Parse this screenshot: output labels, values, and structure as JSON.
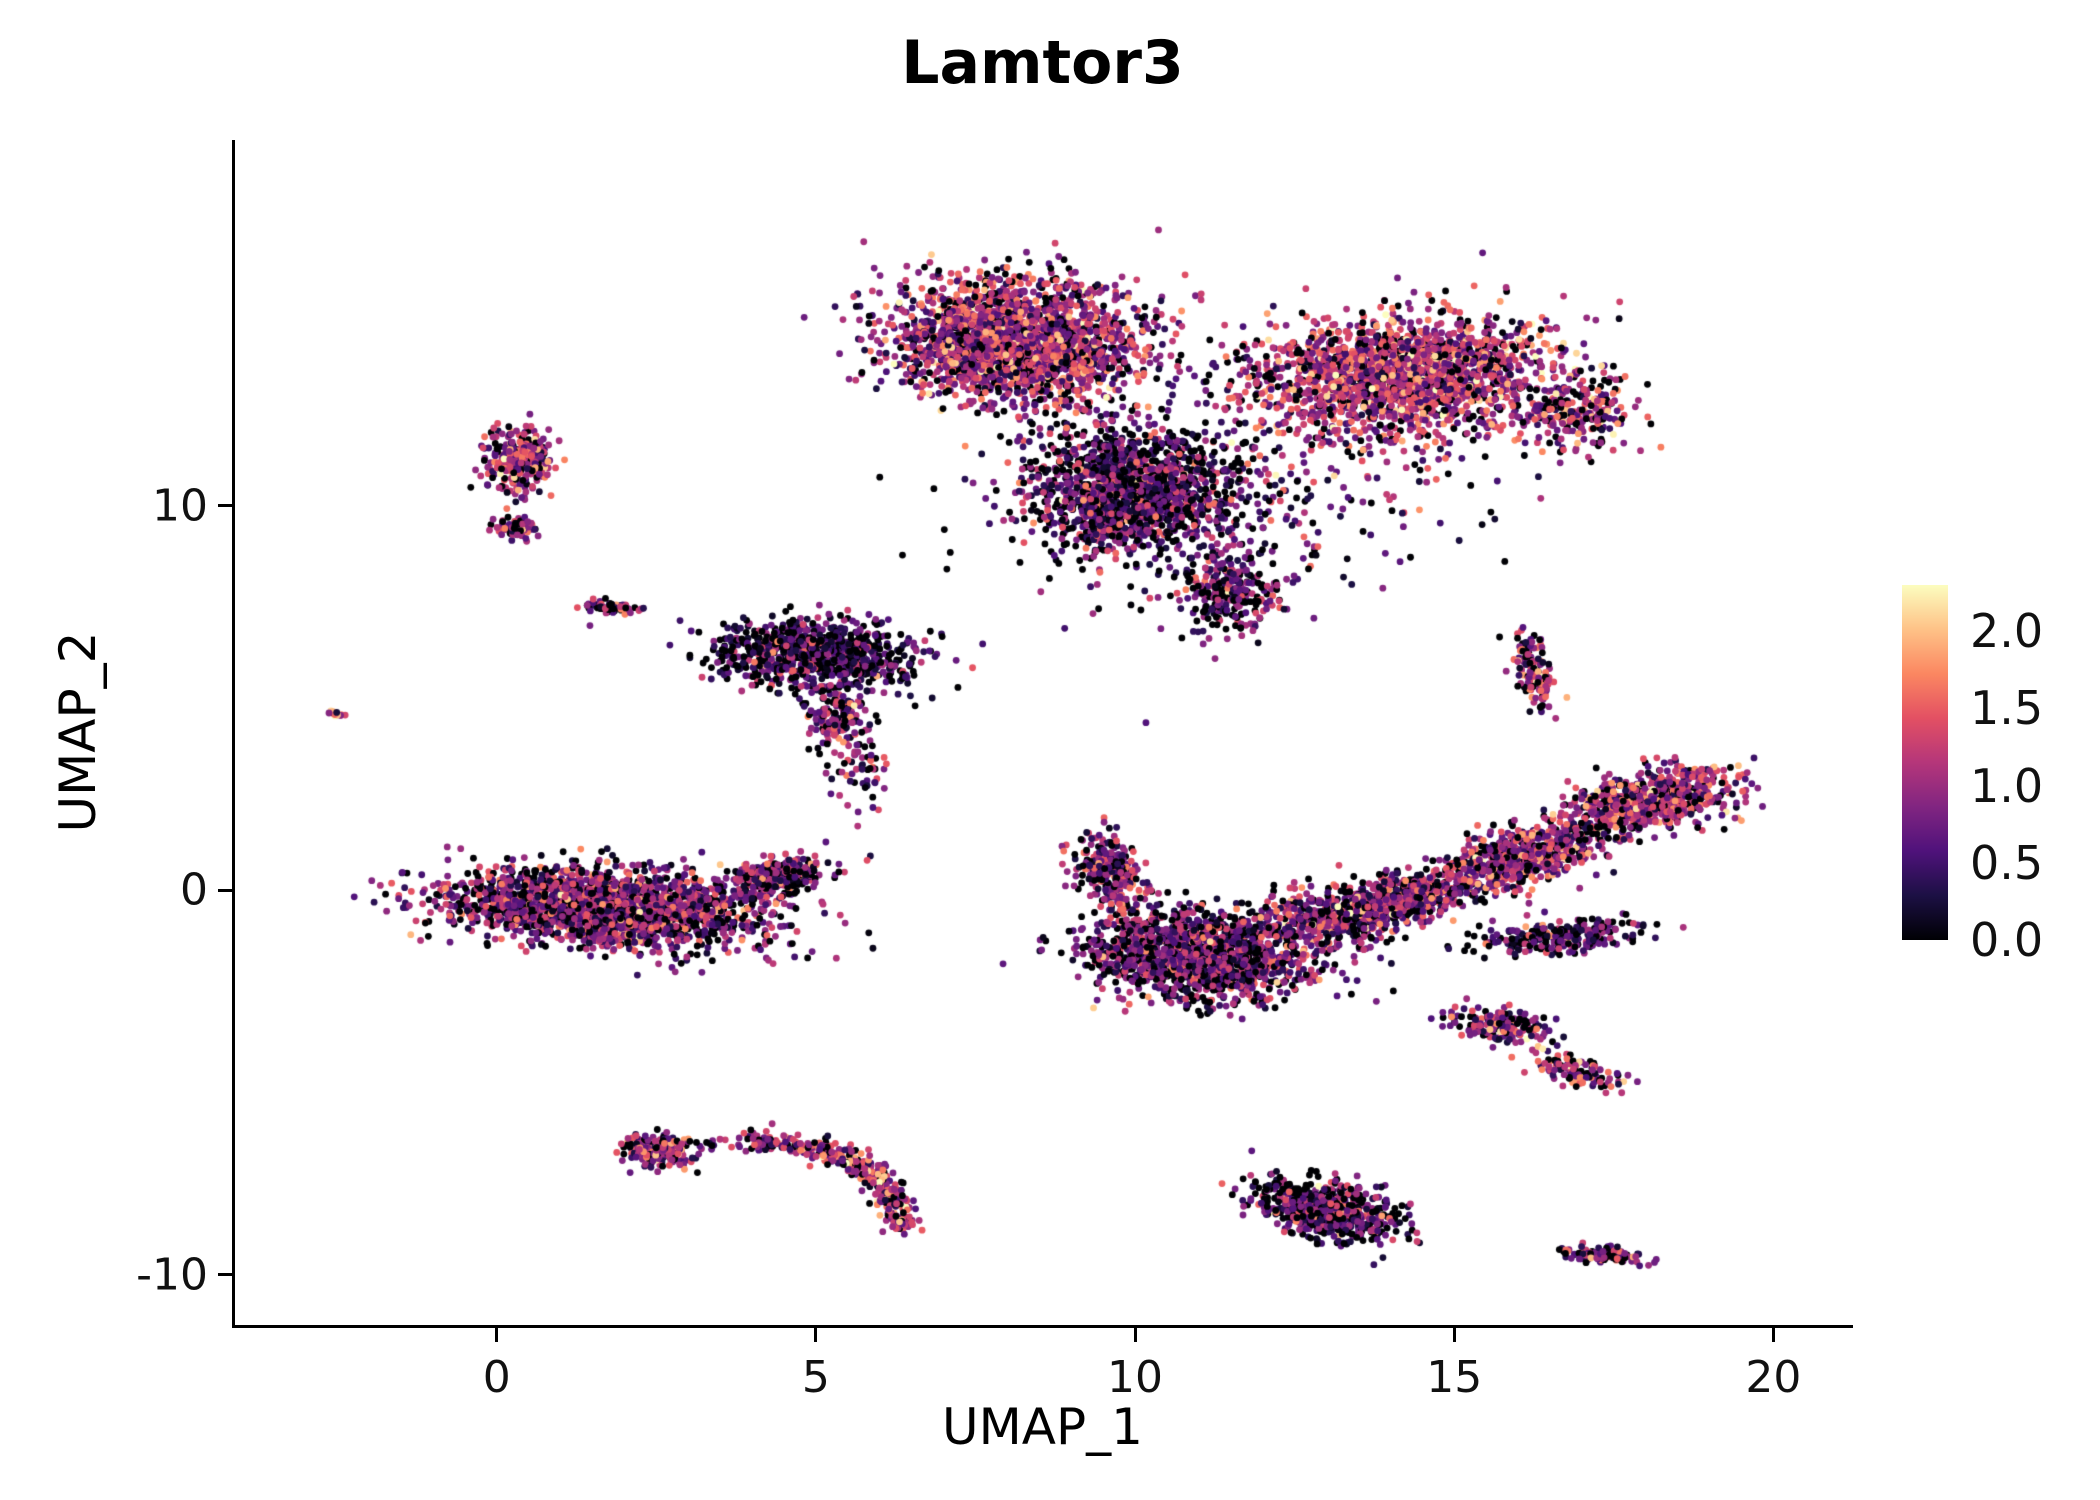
{
  "title": "Lamtor3",
  "chart_data": {
    "type": "scatter",
    "title": "Lamtor3",
    "xlabel": "UMAP_1",
    "ylabel": "UMAP_2",
    "xlim": [
      -4.1,
      21.2
    ],
    "ylim": [
      -11.3,
      19.5
    ],
    "x_ticks": [
      0,
      5,
      10,
      15,
      20
    ],
    "y_ticks": [
      -10,
      0,
      10
    ],
    "grid": false,
    "background": "#ffffff",
    "axis_color": "#000000",
    "point_radius_px": 3.4,
    "legend": {
      "position": "right",
      "vmin": 0.0,
      "vmax": 2.3,
      "ticks": [
        2.0,
        1.5,
        1.0,
        0.5,
        0.0
      ],
      "tick_labels": [
        "2.0",
        "1.5",
        "1.0",
        "0.5",
        "0.0"
      ]
    },
    "colormap": {
      "name": "magma",
      "stops": [
        {
          "t": 0.0,
          "color": "#000004"
        },
        {
          "t": 0.125,
          "color": "#1c1044"
        },
        {
          "t": 0.25,
          "color": "#4f127b"
        },
        {
          "t": 0.375,
          "color": "#812581"
        },
        {
          "t": 0.5,
          "color": "#b5367a"
        },
        {
          "t": 0.625,
          "color": "#e35063"
        },
        {
          "t": 0.75,
          "color": "#fb8761"
        },
        {
          "t": 0.875,
          "color": "#fec287"
        },
        {
          "t": 1.0,
          "color": "#fcfdbf"
        }
      ]
    },
    "clusters": [
      {
        "name": "top-left-lobe",
        "cx": 8.1,
        "cy": 14.3,
        "rx": 1.9,
        "ry": 1.5,
        "rot": -10,
        "n": 2300,
        "mean": 1.05,
        "p0": 0.13
      },
      {
        "name": "top-right-lobe",
        "cx": 14.2,
        "cy": 13.4,
        "rx": 2.3,
        "ry": 1.5,
        "rot": 8,
        "n": 2000,
        "mean": 1.15,
        "p0": 0.12
      },
      {
        "name": "top-right-edge",
        "cx": 16.9,
        "cy": 12.4,
        "rx": 0.9,
        "ry": 0.9,
        "rot": 0,
        "n": 250,
        "mean": 1.1,
        "p0": 0.15
      },
      {
        "name": "top-mid-lower",
        "cx": 9.9,
        "cy": 10.4,
        "rx": 1.6,
        "ry": 1.6,
        "rot": 0,
        "n": 1400,
        "mean": 0.7,
        "p0": 0.3
      },
      {
        "name": "top-lower-trail",
        "cx": 11.5,
        "cy": 7.7,
        "rx": 0.8,
        "ry": 1.1,
        "rot": 0,
        "n": 280,
        "mean": 0.8,
        "p0": 0.25
      },
      {
        "name": "top-sparse",
        "cx": 11.6,
        "cy": 10.8,
        "rx": 2.6,
        "ry": 2.2,
        "rot": 0,
        "n": 420,
        "mean": 0.8,
        "p0": 0.3,
        "sparse": true
      },
      {
        "name": "left-upper-small",
        "cx": 0.35,
        "cy": 11.2,
        "rx": 0.5,
        "ry": 0.85,
        "rot": 0,
        "n": 300,
        "mean": 1.0,
        "p0": 0.15
      },
      {
        "name": "left-upper-small-sub",
        "cx": 0.3,
        "cy": 9.4,
        "rx": 0.35,
        "ry": 0.3,
        "rot": 0,
        "n": 80,
        "mean": 0.95,
        "p0": 0.18
      },
      {
        "name": "left-tiny-streak",
        "cx": 1.8,
        "cy": 7.35,
        "rx": 0.5,
        "ry": 0.16,
        "rot": -8,
        "n": 60,
        "mean": 0.9,
        "p0": 0.25
      },
      {
        "name": "far-left-dot",
        "cx": -2.5,
        "cy": 4.6,
        "rx": 0.14,
        "ry": 0.1,
        "rot": 0,
        "n": 14,
        "mean": 1.4,
        "p0": 0.1
      },
      {
        "name": "mid-dark-cluster",
        "cx": 5.0,
        "cy": 6.15,
        "rx": 1.55,
        "ry": 0.85,
        "rot": -5,
        "n": 950,
        "mean": 0.55,
        "p0": 0.38
      },
      {
        "name": "mid-tail",
        "cx": 5.35,
        "cy": 4.4,
        "rx": 0.45,
        "ry": 0.75,
        "rot": 0,
        "n": 150,
        "mean": 0.9,
        "p0": 0.2
      },
      {
        "name": "mid-drip",
        "cx": 5.7,
        "cy": 3.0,
        "rx": 0.35,
        "ry": 0.8,
        "rot": 0,
        "n": 60,
        "mean": 0.9,
        "p0": 0.2,
        "sparse": true
      },
      {
        "name": "left-main",
        "cx": 1.7,
        "cy": -0.45,
        "rx": 2.4,
        "ry": 0.95,
        "rot": -7,
        "n": 2300,
        "mean": 0.9,
        "p0": 0.22
      },
      {
        "name": "left-main-tip",
        "cx": 4.4,
        "cy": 0.35,
        "rx": 0.8,
        "ry": 0.45,
        "rot": 20,
        "n": 300,
        "mean": 0.85,
        "p0": 0.2
      },
      {
        "name": "center-arm",
        "cx": 9.6,
        "cy": 0.5,
        "rx": 0.5,
        "ry": 1.0,
        "rot": 15,
        "n": 260,
        "mean": 0.85,
        "p0": 0.2
      },
      {
        "name": "center-main",
        "cx": 11.0,
        "cy": -1.7,
        "rx": 1.7,
        "ry": 1.1,
        "rot": -12,
        "n": 1500,
        "mean": 0.8,
        "p0": 0.27
      },
      {
        "name": "center-right",
        "cx": 13.1,
        "cy": -0.7,
        "rx": 1.1,
        "ry": 0.8,
        "rot": 10,
        "n": 450,
        "mean": 0.9,
        "p0": 0.2
      },
      {
        "name": "band-1",
        "cx": 14.3,
        "cy": -0.2,
        "rx": 1.1,
        "ry": 0.6,
        "rot": 25,
        "n": 480,
        "mean": 0.9,
        "p0": 0.2
      },
      {
        "name": "band-2",
        "cx": 16.1,
        "cy": 0.9,
        "rx": 1.3,
        "ry": 0.65,
        "rot": 28,
        "n": 650,
        "mean": 1.0,
        "p0": 0.17
      },
      {
        "name": "band-3",
        "cx": 18.1,
        "cy": 2.3,
        "rx": 1.4,
        "ry": 0.75,
        "rot": 25,
        "n": 700,
        "mean": 1.05,
        "p0": 0.17
      },
      {
        "name": "band-lower",
        "cx": 16.6,
        "cy": -1.2,
        "rx": 1.3,
        "ry": 0.45,
        "rot": 10,
        "n": 260,
        "mean": 0.65,
        "p0": 0.3
      },
      {
        "name": "right-streak",
        "cx": 16.25,
        "cy": 5.7,
        "rx": 0.28,
        "ry": 1.05,
        "rot": 8,
        "n": 140,
        "mean": 1.1,
        "p0": 0.15
      },
      {
        "name": "small-right-blob",
        "cx": 15.7,
        "cy": -3.5,
        "rx": 0.75,
        "ry": 0.4,
        "rot": -12,
        "n": 190,
        "mean": 0.95,
        "p0": 0.2
      },
      {
        "name": "small-right-arc",
        "cx": 16.9,
        "cy": -4.7,
        "rx": 0.8,
        "ry": 0.35,
        "rot": -25,
        "n": 110,
        "mean": 1.0,
        "p0": 0.2
      },
      {
        "name": "bottom-left-blob",
        "cx": 2.55,
        "cy": -6.75,
        "rx": 0.55,
        "ry": 0.4,
        "rot": -10,
        "n": 230,
        "mean": 1.0,
        "p0": 0.18
      },
      {
        "name": "bottom-left-outliers",
        "cx": 3.8,
        "cy": -6.6,
        "rx": 0.7,
        "ry": 0.15,
        "rot": 0,
        "n": 25,
        "mean": 0.9,
        "p0": 0.2,
        "sparse": true
      },
      {
        "name": "crescent",
        "bezier": [
          [
            4.05,
            -6.55
          ],
          [
            6.3,
            -6.7
          ],
          [
            6.3,
            -8.85
          ]
        ],
        "width": 0.28,
        "n": 380,
        "mean": 1.15,
        "p0": 0.15
      },
      {
        "name": "bottom-center",
        "cx": 13.0,
        "cy": -8.3,
        "rx": 1.2,
        "ry": 0.7,
        "rot": -30,
        "n": 620,
        "mean": 0.7,
        "p0": 0.3
      },
      {
        "name": "bottom-right-streak",
        "cx": 17.35,
        "cy": -9.5,
        "rx": 0.55,
        "ry": 0.2,
        "rot": -10,
        "n": 120,
        "mean": 0.75,
        "p0": 0.28
      }
    ]
  }
}
